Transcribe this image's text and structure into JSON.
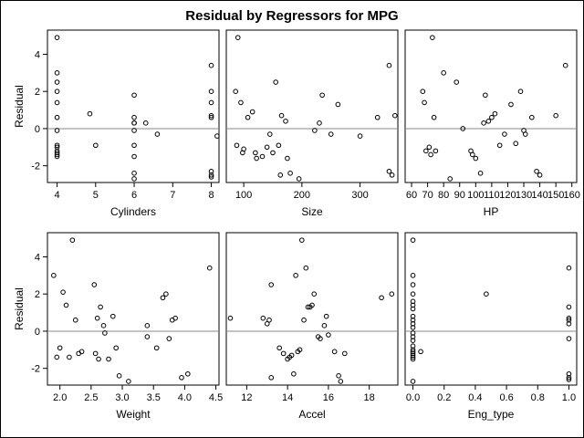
{
  "chart_data": {
    "type": "scatter",
    "title": "Residual by Regressors for MPG",
    "ylabel": "Residual",
    "ylim": [
      -2.9,
      5.3
    ],
    "yticks": [
      -2,
      0,
      2,
      4
    ],
    "reference_line": 0,
    "panels": [
      {
        "xlabel": "Cylinders",
        "xlim": [
          3.75,
          8.2
        ],
        "xticks": [
          "4",
          "5",
          "6",
          "7",
          "8"
        ],
        "xtick_values": [
          4,
          5,
          6,
          7,
          8
        ],
        "x": [
          4,
          4,
          4,
          4,
          4,
          4,
          4,
          4,
          4,
          4,
          4,
          4,
          4,
          4.85,
          5,
          6,
          6,
          6,
          6,
          6,
          6,
          6,
          6,
          6,
          6.3,
          6.6,
          8,
          8,
          8,
          8,
          8,
          8,
          8,
          8,
          8.15
        ],
        "y": [
          4.9,
          3.0,
          2.5,
          2.0,
          1.4,
          0.6,
          -0.1,
          -0.9,
          -1.0,
          -1.2,
          -1.3,
          -1.4,
          -1.5,
          0.8,
          -0.9,
          1.8,
          0.6,
          0.3,
          -0.1,
          -0.9,
          -1.5,
          -2.4,
          -2.7,
          0.3,
          0.3,
          -0.3,
          3.4,
          2.0,
          1.4,
          0.7,
          0.6,
          -2.3,
          -2.5,
          -2.6,
          -0.4
        ]
      },
      {
        "xlabel": "Size",
        "xlim": [
          70,
          365
        ],
        "xticks": [
          "100",
          "200",
          "300"
        ],
        "xtick_values": [
          100,
          200,
          300
        ],
        "x": [
          86,
          90,
          88,
          95,
          98,
          100,
          107,
          115,
          120,
          122,
          132,
          140,
          145,
          150,
          155,
          160,
          163,
          165,
          172,
          175,
          180,
          195,
          222,
          230,
          235,
          250,
          262,
          300,
          330,
          350,
          350,
          355,
          360
        ],
        "y": [
          2.0,
          4.9,
          -0.9,
          1.4,
          -1.3,
          -1.1,
          0.6,
          0.9,
          -1.3,
          -1.6,
          -1.5,
          -1.0,
          -0.3,
          -1.3,
          2.5,
          -0.9,
          -2.5,
          0.7,
          0.4,
          -1.6,
          -2.4,
          -2.7,
          -0.1,
          0.3,
          1.8,
          -0.3,
          1.3,
          -0.4,
          0.6,
          3.4,
          -2.3,
          -2.5,
          0.7
        ]
      },
      {
        "xlabel": "HP",
        "xlim": [
          56,
          163
        ],
        "xticks": [
          "60",
          "70",
          "80",
          "90",
          "100",
          "110",
          "120",
          "130",
          "140",
          "150",
          "160"
        ],
        "xtick_values": [
          60,
          70,
          80,
          90,
          100,
          110,
          120,
          130,
          140,
          150,
          160
        ],
        "x": [
          67,
          68,
          69,
          71,
          72,
          73,
          74,
          75,
          80,
          84,
          88,
          92,
          97,
          98,
          100,
          103,
          105,
          106,
          108,
          110,
          112,
          115,
          118,
          122,
          125,
          128,
          130,
          131,
          135,
          138,
          140,
          150,
          156
        ],
        "y": [
          2.0,
          1.4,
          -1.2,
          -1.0,
          -1.4,
          4.9,
          0.6,
          -1.2,
          3.0,
          -2.7,
          2.5,
          0.0,
          -1.2,
          -1.4,
          -1.6,
          -2.4,
          0.3,
          1.8,
          0.4,
          0.6,
          0.8,
          -0.9,
          -0.3,
          1.3,
          -0.8,
          2.0,
          -0.1,
          -0.3,
          0.6,
          -2.3,
          -2.5,
          0.7,
          3.4
        ]
      },
      {
        "xlabel": "Weight",
        "xlim": [
          1.8,
          4.55
        ],
        "xticks": [
          "2.0",
          "2.5",
          "3.0",
          "3.5",
          "4.0",
          "4.5"
        ],
        "xtick_values": [
          2.0,
          2.5,
          3.0,
          3.5,
          4.0,
          4.5
        ],
        "x": [
          1.9,
          1.95,
          2.0,
          2.05,
          2.1,
          2.15,
          2.2,
          2.25,
          2.3,
          2.35,
          2.55,
          2.57,
          2.6,
          2.62,
          2.65,
          2.7,
          2.72,
          2.78,
          2.85,
          2.9,
          2.95,
          3.1,
          3.4,
          3.4,
          3.55,
          3.65,
          3.7,
          3.75,
          3.8,
          3.85,
          3.95,
          4.05,
          4.4
        ],
        "y": [
          3.0,
          -1.4,
          -0.9,
          2.1,
          1.4,
          -1.4,
          4.9,
          0.6,
          -1.2,
          -1.1,
          2.5,
          -1.2,
          0.7,
          -1.5,
          1.3,
          0.3,
          -0.1,
          -1.5,
          0.8,
          -0.9,
          -2.4,
          -2.7,
          0.3,
          -0.3,
          -0.9,
          1.8,
          2.0,
          -0.4,
          0.6,
          0.7,
          -2.5,
          -2.3,
          3.4
        ]
      },
      {
        "xlabel": "Accel",
        "xlim": [
          11,
          19.4
        ],
        "xticks": [
          "12",
          "14",
          "16",
          "18"
        ],
        "xtick_values": [
          12,
          14,
          16,
          18
        ],
        "x": [
          11.2,
          12.8,
          13.0,
          13.1,
          13.2,
          13.2,
          13.6,
          13.8,
          14.0,
          14.1,
          14.2,
          14.3,
          14.4,
          14.5,
          14.6,
          14.7,
          14.8,
          14.9,
          15.0,
          15.1,
          15.2,
          15.3,
          15.5,
          15.6,
          15.8,
          15.9,
          16.0,
          16.3,
          16.5,
          16.6,
          16.8,
          18.6,
          19.1
        ],
        "y": [
          0.7,
          0.7,
          0.4,
          0.6,
          2.5,
          -2.5,
          -0.9,
          -1.2,
          -1.5,
          -1.4,
          -1.3,
          -2.3,
          3.0,
          -1.1,
          -1.0,
          4.9,
          0.6,
          3.4,
          1.3,
          1.3,
          1.4,
          2.0,
          -0.3,
          -0.4,
          0.3,
          0.8,
          -0.2,
          -1.1,
          -2.4,
          -2.7,
          -1.2,
          1.8,
          2.0
        ]
      },
      {
        "xlabel": "Eng_type",
        "xlim": [
          -0.05,
          1.05
        ],
        "xticks": [
          "0.0",
          "0.2",
          "0.4",
          "0.6",
          "0.8",
          "1.0"
        ],
        "xtick_values": [
          0.0,
          0.2,
          0.4,
          0.6,
          0.8,
          1.0
        ],
        "x": [
          0,
          0,
          0,
          0,
          0,
          0,
          0,
          0,
          0,
          0,
          0,
          0,
          0,
          0,
          0,
          0,
          0,
          0,
          0,
          0,
          0,
          0,
          0.05,
          0.47,
          1,
          1,
          1,
          1,
          1,
          1,
          1,
          1,
          1
        ],
        "y": [
          4.9,
          3.0,
          2.5,
          2.0,
          1.6,
          1.4,
          1.2,
          0.8,
          0.6,
          0.4,
          0.2,
          -0.1,
          -0.3,
          -0.5,
          -0.8,
          -1.0,
          -1.1,
          -1.2,
          -1.3,
          -1.4,
          -1.5,
          -2.7,
          -1.1,
          2.0,
          3.4,
          1.3,
          0.7,
          0.6,
          0.4,
          -0.4,
          -2.3,
          -2.5,
          -2.6
        ]
      }
    ]
  }
}
